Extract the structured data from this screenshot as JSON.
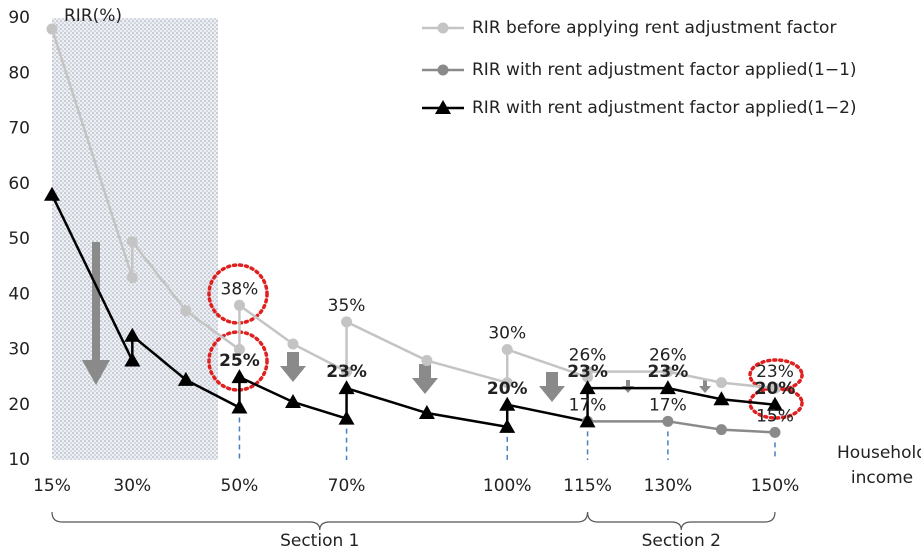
{
  "chart_data": {
    "type": "line",
    "y_label": "RIR(%)",
    "x_label": [
      "Household",
      "income"
    ],
    "x": [
      15,
      30,
      30,
      40,
      50,
      50,
      60,
      70,
      70,
      85,
      100,
      100,
      115,
      115,
      130,
      140,
      150
    ],
    "xlim": [
      15,
      150
    ],
    "xticks": [
      {
        "value": 15,
        "label": "15%"
      },
      {
        "value": 30,
        "label": "30%"
      },
      {
        "value": 50,
        "label": "50%"
      },
      {
        "value": 70,
        "label": "70%"
      },
      {
        "value": 100,
        "label": "100%"
      },
      {
        "value": 115,
        "label": "115%"
      },
      {
        "value": 130,
        "label": "130%"
      },
      {
        "value": 150,
        "label": "150%"
      }
    ],
    "ylim": [
      10,
      90
    ],
    "yticks": [
      10,
      20,
      30,
      40,
      50,
      60,
      70,
      80,
      90
    ],
    "shaded_xlim": [
      15,
      46
    ],
    "sections": [
      {
        "label": "Section 1",
        "range": [
          15,
          115
        ]
      },
      {
        "label": "Section 2",
        "range": [
          115,
          150
        ]
      }
    ],
    "legend": "top-right",
    "series": [
      {
        "name": "RIR before applying rent adjustment factor",
        "color": "#c4c4c4",
        "marker": "circle",
        "values": [
          88,
          43,
          49.5,
          37,
          30,
          38,
          31,
          26,
          35,
          28,
          24,
          30,
          25,
          26,
          26,
          24,
          23
        ],
        "value_labels": [
          null,
          null,
          null,
          null,
          null,
          "38%",
          null,
          null,
          "35%",
          null,
          null,
          "30%",
          null,
          "26%",
          "26%",
          null,
          "23%"
        ]
      },
      {
        "name": "RIR with rent adjustment factor applied(1−1)",
        "color": "#8a8a8a",
        "marker": "circle",
        "values": [
          null,
          null,
          null,
          null,
          null,
          null,
          null,
          null,
          null,
          null,
          null,
          null,
          null,
          17,
          17,
          15.5,
          15
        ],
        "value_labels": [
          null,
          null,
          null,
          null,
          null,
          null,
          null,
          null,
          null,
          null,
          null,
          null,
          null,
          "17%",
          "17%",
          null,
          "15%"
        ]
      },
      {
        "name": "RIR with rent adjustment factor applied(1−2)",
        "color": "#000000",
        "marker": "triangle",
        "values": [
          58,
          28,
          32.5,
          24.5,
          19.5,
          25,
          20.5,
          17.5,
          23,
          18.5,
          16,
          20,
          17,
          23,
          23,
          21,
          20
        ],
        "value_labels": [
          null,
          null,
          null,
          null,
          null,
          "25%",
          null,
          null,
          "23%",
          null,
          null,
          "20%",
          null,
          "23%",
          "23%",
          null,
          "20%"
        ]
      }
    ]
  }
}
